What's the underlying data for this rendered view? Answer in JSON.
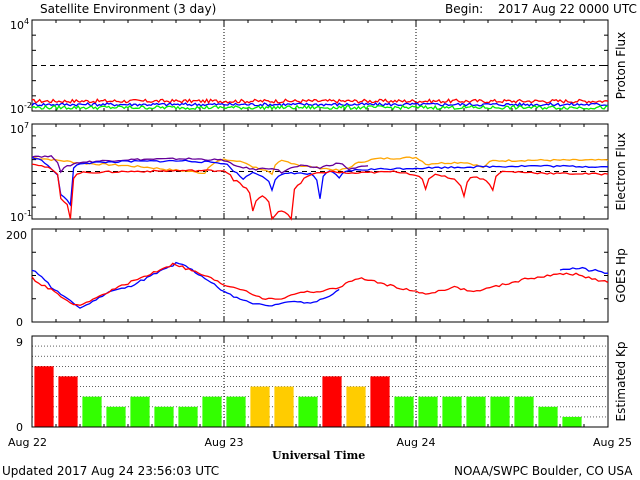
{
  "header": {
    "title": "Satellite Environment (3 day)",
    "begin_label": "Begin:",
    "begin_value": "2017 Aug 22 0000 UTC"
  },
  "footer": {
    "updated": "Updated 2017 Aug 24 23:56:03 UTC",
    "xlabel": "Universal Time",
    "credit": "NOAA/SWPC Boulder, CO USA"
  },
  "colors": {
    "red": "#ff0000",
    "blue": "#0000ff",
    "green": "#00ee00",
    "purple": "#660099",
    "orange": "#ffa500",
    "kp_green": "#33ff00",
    "kp_yellow": "#ffcc00",
    "kp_red": "#ff0000"
  },
  "chart_data": [
    {
      "type": "line",
      "panel": "proton",
      "ylabel": "Proton Flux",
      "yscale": "log",
      "ylim": [
        0.01,
        10000
      ],
      "yticks": [
        {
          "exp": "-2"
        },
        {
          "exp": "4"
        }
      ],
      "threshold": 10,
      "x_categories": [
        "Aug 22",
        "Aug 23",
        "Aug 24",
        "Aug 25"
      ],
      "series": [
        {
          "color": "red",
          "level": 0.045,
          "jitter": 0.12
        },
        {
          "color": "blue",
          "level": 0.027,
          "jitter": 0.1
        },
        {
          "color": "green",
          "level": 0.017,
          "jitter": 0.12
        }
      ]
    },
    {
      "type": "line",
      "panel": "electron",
      "ylabel": "Electron Flux",
      "yscale": "log",
      "ylim": [
        0.1,
        10000000
      ],
      "yticks": [
        {
          "exp": "-1"
        },
        {
          "exp": "7"
        }
      ],
      "threshold": 1000,
      "series": [
        {
          "color": "orange",
          "points": [
            [
              0,
              15000
            ],
            [
              0.1,
              10000
            ],
            [
              0.25,
              5000
            ],
            [
              0.5,
              3000
            ],
            [
              0.7,
              1500
            ],
            [
              0.9,
              700
            ],
            [
              1,
              10000
            ],
            [
              1.1,
              6000
            ],
            [
              1.15,
              2500
            ],
            [
              1.25,
              500
            ],
            [
              1.3,
              8000
            ],
            [
              1.4,
              3000
            ],
            [
              1.5,
              2000
            ],
            [
              1.6,
              1200
            ],
            [
              1.65,
              2000
            ],
            [
              1.8,
              12000
            ],
            [
              2.0,
              15000
            ],
            [
              2.05,
              4000
            ],
            [
              2.1,
              5000
            ],
            [
              2.25,
              6000
            ],
            [
              2.35,
              2000
            ],
            [
              2.4,
              8000
            ],
            [
              2.6,
              9000
            ],
            [
              3,
              9000
            ]
          ]
        },
        {
          "color": "purple",
          "points": [
            [
              0,
              20000
            ],
            [
              0.1,
              18000
            ],
            [
              0.15,
              1000
            ],
            [
              0.25,
              6000
            ],
            [
              0.5,
              10000
            ],
            [
              0.8,
              12000
            ],
            [
              1.0,
              9000
            ],
            [
              1.05,
              3000
            ],
            [
              1.15,
              1500
            ],
            [
              1.25,
              2000
            ],
            [
              1.3,
              800
            ],
            [
              1.4,
              3000
            ],
            [
              1.5,
              2000
            ],
            [
              1.6,
              5000
            ],
            [
              1.65,
              1500
            ],
            [
              1.75,
              3000
            ]
          ]
        },
        {
          "color": "blue",
          "points": [
            [
              0,
              15000
            ],
            [
              0.05,
              8000
            ],
            [
              0.1,
              1500
            ],
            [
              0.15,
              10
            ],
            [
              0.2,
              1.5
            ],
            [
              0.25,
              5000
            ],
            [
              0.5,
              7000
            ],
            [
              0.8,
              8000
            ],
            [
              1.0,
              5000
            ],
            [
              1.05,
              1000
            ],
            [
              1.1,
              200
            ],
            [
              1.15,
              800
            ],
            [
              1.25,
              30
            ],
            [
              1.3,
              500
            ],
            [
              1.35,
              800
            ],
            [
              1.45,
              600
            ],
            [
              1.5,
              5
            ],
            [
              1.55,
              1000
            ],
            [
              1.6,
              300
            ],
            [
              1.65,
              1200
            ],
            [
              1.75,
              1500
            ],
            [
              2.6,
              3000
            ],
            [
              3,
              2500
            ]
          ]
        },
        {
          "color": "red",
          "points": [
            [
              0,
              5000
            ],
            [
              0.05,
              3000
            ],
            [
              0.15,
              5
            ],
            [
              0.2,
              0.1
            ],
            [
              0.25,
              800
            ],
            [
              0.5,
              1000
            ],
            [
              0.8,
              1200
            ],
            [
              1.0,
              1200
            ],
            [
              1.05,
              200
            ],
            [
              1.1,
              50
            ],
            [
              1.15,
              0.5
            ],
            [
              1.2,
              8
            ],
            [
              1.25,
              0.1
            ],
            [
              1.3,
              0.5
            ],
            [
              1.35,
              0.1
            ],
            [
              1.4,
              100
            ],
            [
              1.45,
              500
            ],
            [
              1.55,
              1000
            ],
            [
              1.65,
              700
            ],
            [
              1.75,
              800
            ],
            [
              1.9,
              1000
            ],
            [
              2.0,
              500
            ],
            [
              2.05,
              30
            ],
            [
              2.1,
              600
            ],
            [
              2.2,
              200
            ],
            [
              2.25,
              8
            ],
            [
              2.3,
              400
            ],
            [
              2.4,
              30
            ],
            [
              2.45,
              1000
            ],
            [
              2.7,
              700
            ],
            [
              3,
              600
            ]
          ]
        }
      ]
    },
    {
      "type": "line",
      "panel": "goes_hp",
      "ylabel": "GOES Hp",
      "yscale": "linear",
      "ylim": [
        0,
        200
      ],
      "yticks": [
        0,
        200
      ],
      "series": [
        {
          "color": "blue",
          "points": [
            [
              0,
              110
            ],
            [
              0.05,
              100
            ],
            [
              0.1,
              75
            ],
            [
              0.2,
              45
            ],
            [
              0.25,
              30
            ],
            [
              0.3,
              40
            ],
            [
              0.4,
              65
            ],
            [
              0.5,
              75
            ],
            [
              0.6,
              95
            ],
            [
              0.7,
              115
            ],
            [
              0.75,
              125
            ],
            [
              0.8,
              120
            ],
            [
              0.9,
              95
            ],
            [
              1.0,
              65
            ],
            [
              1.05,
              55
            ],
            [
              1.15,
              40
            ],
            [
              1.25,
              35
            ],
            [
              1.35,
              45
            ],
            [
              1.45,
              40
            ],
            [
              1.55,
              55
            ],
            [
              1.6,
              70
            ]
          ]
        },
        {
          "color": "red",
          "points": [
            [
              0,
              95
            ],
            [
              0.05,
              80
            ],
            [
              0.1,
              70
            ],
            [
              0.2,
              40
            ],
            [
              0.25,
              35
            ],
            [
              0.35,
              55
            ],
            [
              0.45,
              75
            ],
            [
              0.6,
              100
            ],
            [
              0.7,
              120
            ],
            [
              0.75,
              125
            ],
            [
              0.8,
              115
            ],
            [
              0.9,
              100
            ],
            [
              1.0,
              80
            ],
            [
              1.1,
              70
            ],
            [
              1.2,
              50
            ],
            [
              1.3,
              50
            ],
            [
              1.4,
              65
            ],
            [
              1.5,
              65
            ],
            [
              1.6,
              75
            ],
            [
              1.7,
              95
            ],
            [
              1.75,
              90
            ],
            [
              1.9,
              75
            ],
            [
              2.05,
              60
            ],
            [
              2.1,
              65
            ],
            [
              2.2,
              75
            ],
            [
              2.3,
              65
            ],
            [
              2.4,
              75
            ],
            [
              2.5,
              85
            ],
            [
              2.6,
              95
            ],
            [
              2.7,
              100
            ],
            [
              2.8,
              105
            ],
            [
              2.9,
              95
            ],
            [
              3,
              85
            ]
          ]
        },
        {
          "color": "blue",
          "points": [
            [
              2.75,
              115
            ],
            [
              2.85,
              115
            ],
            [
              3,
              105
            ]
          ]
        }
      ]
    },
    {
      "type": "bar",
      "panel": "kp",
      "ylabel": "Estimated Kp",
      "ylim": [
        0,
        9
      ],
      "yticks": [
        0,
        9
      ],
      "values": [
        6,
        5,
        3,
        2,
        3,
        2,
        2,
        3,
        3,
        4,
        4,
        3,
        5,
        4,
        5,
        3,
        3,
        3,
        3,
        3,
        3,
        2,
        1,
        0
      ],
      "colors": [
        "red",
        "red",
        "green",
        "green",
        "green",
        "green",
        "green",
        "green",
        "green",
        "yellow",
        "yellow",
        "green",
        "red",
        "yellow",
        "red",
        "green",
        "green",
        "green",
        "green",
        "green",
        "green",
        "green",
        "green",
        "green"
      ]
    }
  ]
}
